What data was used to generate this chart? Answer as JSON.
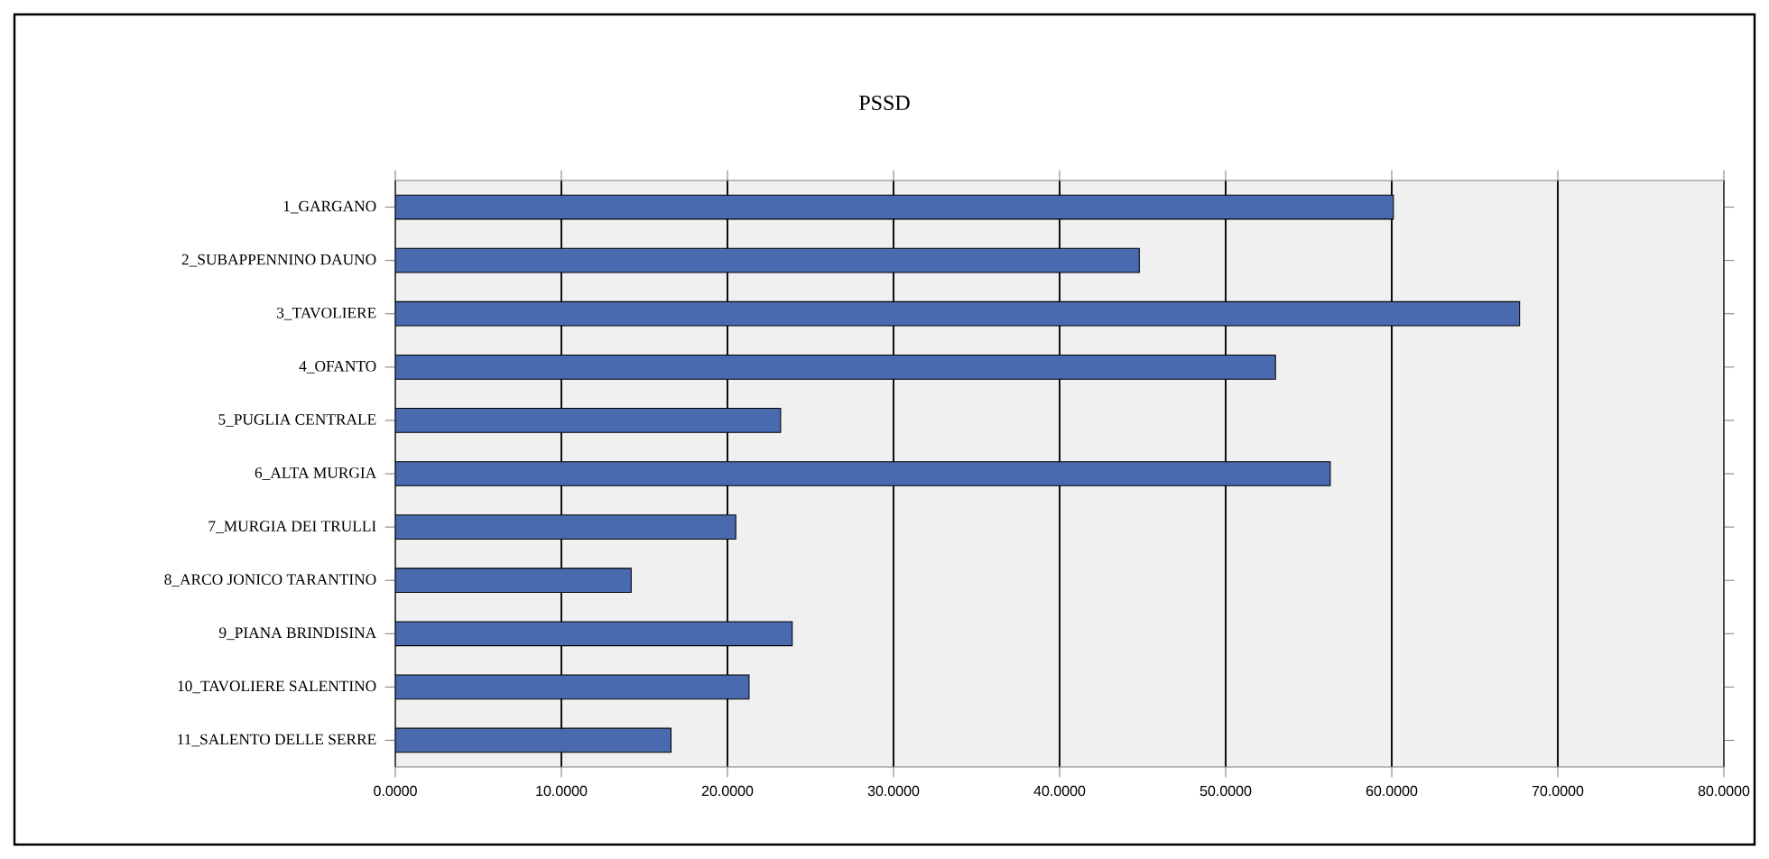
{
  "chart_data": {
    "type": "bar",
    "orientation": "horizontal",
    "title": "PSSD",
    "categories": [
      "1_GARGANO",
      "2_SUBAPPENNINO DAUNO",
      "3_TAVOLIERE",
      "4_OFANTO",
      "5_PUGLIA CENTRALE",
      "6_ALTA MURGIA",
      "7_MURGIA DEI TRULLI",
      "8_ARCO JONICO TARANTINO",
      "9_PIANA BRINDISINA",
      "10_TAVOLIERE SALENTINO",
      "11_SALENTO DELLE SERRE"
    ],
    "values": [
      60.1,
      44.8,
      67.7,
      53.0,
      23.2,
      56.3,
      20.5,
      14.2,
      23.9,
      21.3,
      16.6
    ],
    "color": "#4a6aaf",
    "xlim": [
      0,
      80
    ],
    "xticks": [
      {
        "value": 0,
        "label": "0.0000"
      },
      {
        "value": 10,
        "label": "10.0000"
      },
      {
        "value": 20,
        "label": "20.0000"
      },
      {
        "value": 30,
        "label": "30.0000"
      },
      {
        "value": 40,
        "label": "40.0000"
      },
      {
        "value": 50,
        "label": "50.0000"
      },
      {
        "value": 60,
        "label": "60.0000"
      },
      {
        "value": 70,
        "label": "70.0000"
      },
      {
        "value": 80,
        "label": "80.0000"
      }
    ],
    "grid": "x"
  }
}
